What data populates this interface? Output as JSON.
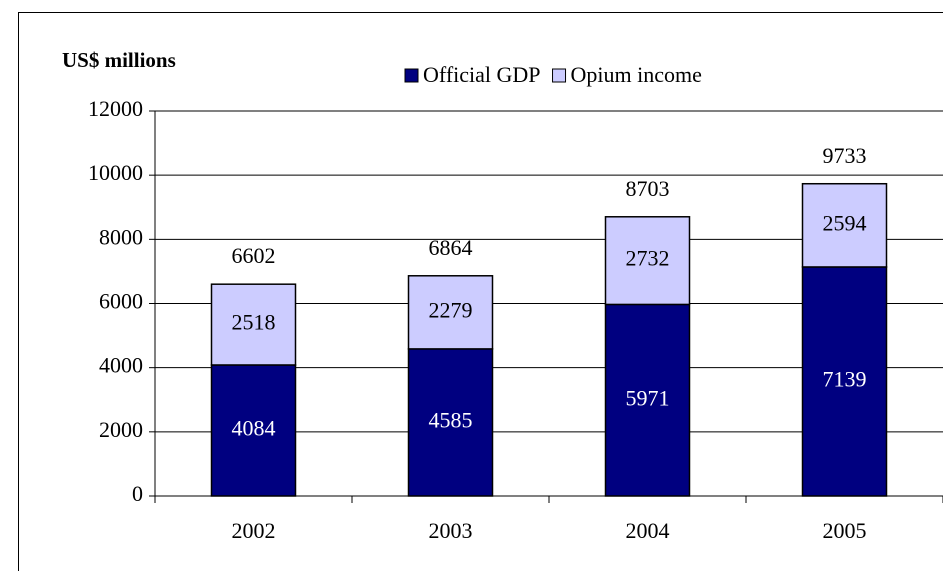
{
  "chart_data": {
    "type": "stacked_bar",
    "title": "US$ millions",
    "categories": [
      "2002",
      "2003",
      "2004",
      "2005"
    ],
    "series": [
      {
        "name": "Official GDP",
        "color": "#000080",
        "values": [
          4084,
          4585,
          5971,
          7139
        ]
      },
      {
        "name": "Opium income",
        "color": "#ccccff",
        "values": [
          2518,
          2279,
          2732,
          2594
        ]
      }
    ],
    "totals": [
      6602,
      6864,
      8703,
      9733
    ],
    "ylim": [
      0,
      12000
    ],
    "yticks": [
      0,
      2000,
      4000,
      6000,
      8000,
      10000,
      12000
    ],
    "grid": true
  }
}
